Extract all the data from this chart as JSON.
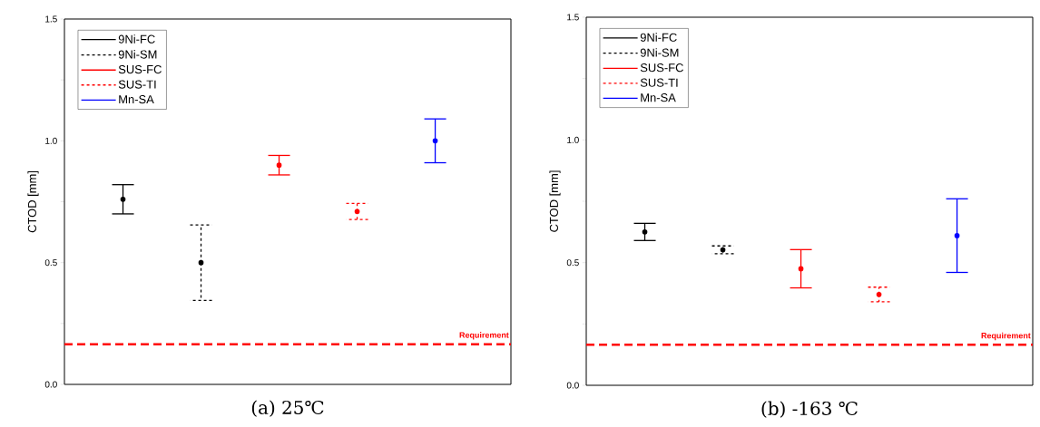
{
  "chart_data": [
    {
      "type": "scatter",
      "title": "(a) 25℃",
      "ylabel": "CTOD [mm]",
      "categories": [
        null,
        null,
        null,
        null,
        null
      ],
      "ylim": [
        0,
        1.5
      ],
      "yticks": [
        {
          "value": 0,
          "label": "0.0"
        },
        {
          "value": 0.25,
          "label": null
        },
        {
          "value": 0.5,
          "label": "0.5"
        },
        {
          "value": 0.75,
          "label": null
        },
        {
          "value": 1,
          "label": "1.0"
        },
        {
          "value": 1.25,
          "label": null
        },
        {
          "value": 1.5,
          "label": "1.5"
        }
      ],
      "legend": "top left",
      "marker": "circle",
      "grid": false,
      "tick_labels": "y",
      "series": [
        {
          "name": "9Ni-FC",
          "color": "#000000",
          "line_style": "solid",
          "values": [
            0.76,
            null,
            null,
            null,
            null
          ],
          "errors": [
            0.06,
            null,
            null,
            null,
            null
          ]
        },
        {
          "name": "9Ni-SM",
          "color": "#000000",
          "line_style": "dashed",
          "values": [
            null,
            0.5,
            null,
            null,
            null
          ],
          "errors": [
            null,
            0.155,
            null,
            null,
            null
          ]
        },
        {
          "name": "SUS-FC",
          "color": "#ff0000",
          "line_style": "solid",
          "values": [
            null,
            null,
            0.9,
            null,
            null
          ],
          "errors": [
            null,
            null,
            0.04,
            null,
            null
          ]
        },
        {
          "name": "SUS-TI",
          "color": "#ff0000",
          "line_style": "dashed",
          "values": [
            null,
            null,
            null,
            0.71,
            null
          ],
          "errors": [
            null,
            null,
            null,
            0.033,
            null
          ]
        },
        {
          "name": "Mn-SA",
          "color": "#0000ff",
          "line_style": "solid",
          "values": [
            null,
            null,
            null,
            null,
            1.0
          ],
          "errors": [
            null,
            null,
            null,
            null,
            0.09
          ]
        }
      ],
      "ref_lines": [
        {
          "axis": "y",
          "value": 0.165,
          "label": "Requirement",
          "color": "#ff0000",
          "line_style": "dashed"
        }
      ]
    },
    {
      "type": "scatter",
      "title": "(b) -163 ℃",
      "ylabel": "CTOD [mm]",
      "categories": [
        null,
        null,
        null,
        null,
        null
      ],
      "ylim": [
        0,
        1.5
      ],
      "yticks": [
        {
          "value": 0,
          "label": "0.0"
        },
        {
          "value": 0.25,
          "label": null
        },
        {
          "value": 0.5,
          "label": "0.5"
        },
        {
          "value": 0.75,
          "label": null
        },
        {
          "value": 1,
          "label": "1.0"
        },
        {
          "value": 1.25,
          "label": null
        },
        {
          "value": 1.5,
          "label": "1.5"
        }
      ],
      "legend": "top left",
      "marker": "circle",
      "grid": false,
      "tick_labels": "y",
      "series": [
        {
          "name": "9Ni-FC",
          "color": "#000000",
          "line_style": "solid",
          "values": [
            0.625,
            null,
            null,
            null,
            null
          ],
          "errors": [
            0.035,
            null,
            null,
            null,
            null
          ]
        },
        {
          "name": "9Ni-SM",
          "color": "#000000",
          "line_style": "dashed",
          "values": [
            null,
            0.552,
            null,
            null,
            null
          ],
          "errors": [
            null,
            0.016,
            null,
            null,
            null
          ]
        },
        {
          "name": "SUS-FC",
          "color": "#ff0000",
          "line_style": "solid",
          "values": [
            null,
            null,
            0.475,
            null,
            null
          ],
          "errors": [
            null,
            null,
            0.078,
            null,
            null
          ]
        },
        {
          "name": "SUS-TI",
          "color": "#ff0000",
          "line_style": "dashed",
          "values": [
            null,
            null,
            null,
            0.37,
            null
          ],
          "errors": [
            null,
            null,
            null,
            0.03,
            null
          ]
        },
        {
          "name": "Mn-SA",
          "color": "#0000ff",
          "line_style": "solid",
          "values": [
            null,
            null,
            null,
            null,
            0.61
          ],
          "errors": [
            null,
            null,
            null,
            null,
            0.15
          ]
        }
      ],
      "ref_lines": [
        {
          "axis": "y",
          "value": 0.165,
          "label": "Requirement",
          "color": "#ff0000",
          "line_style": "dashed"
        }
      ]
    }
  ]
}
